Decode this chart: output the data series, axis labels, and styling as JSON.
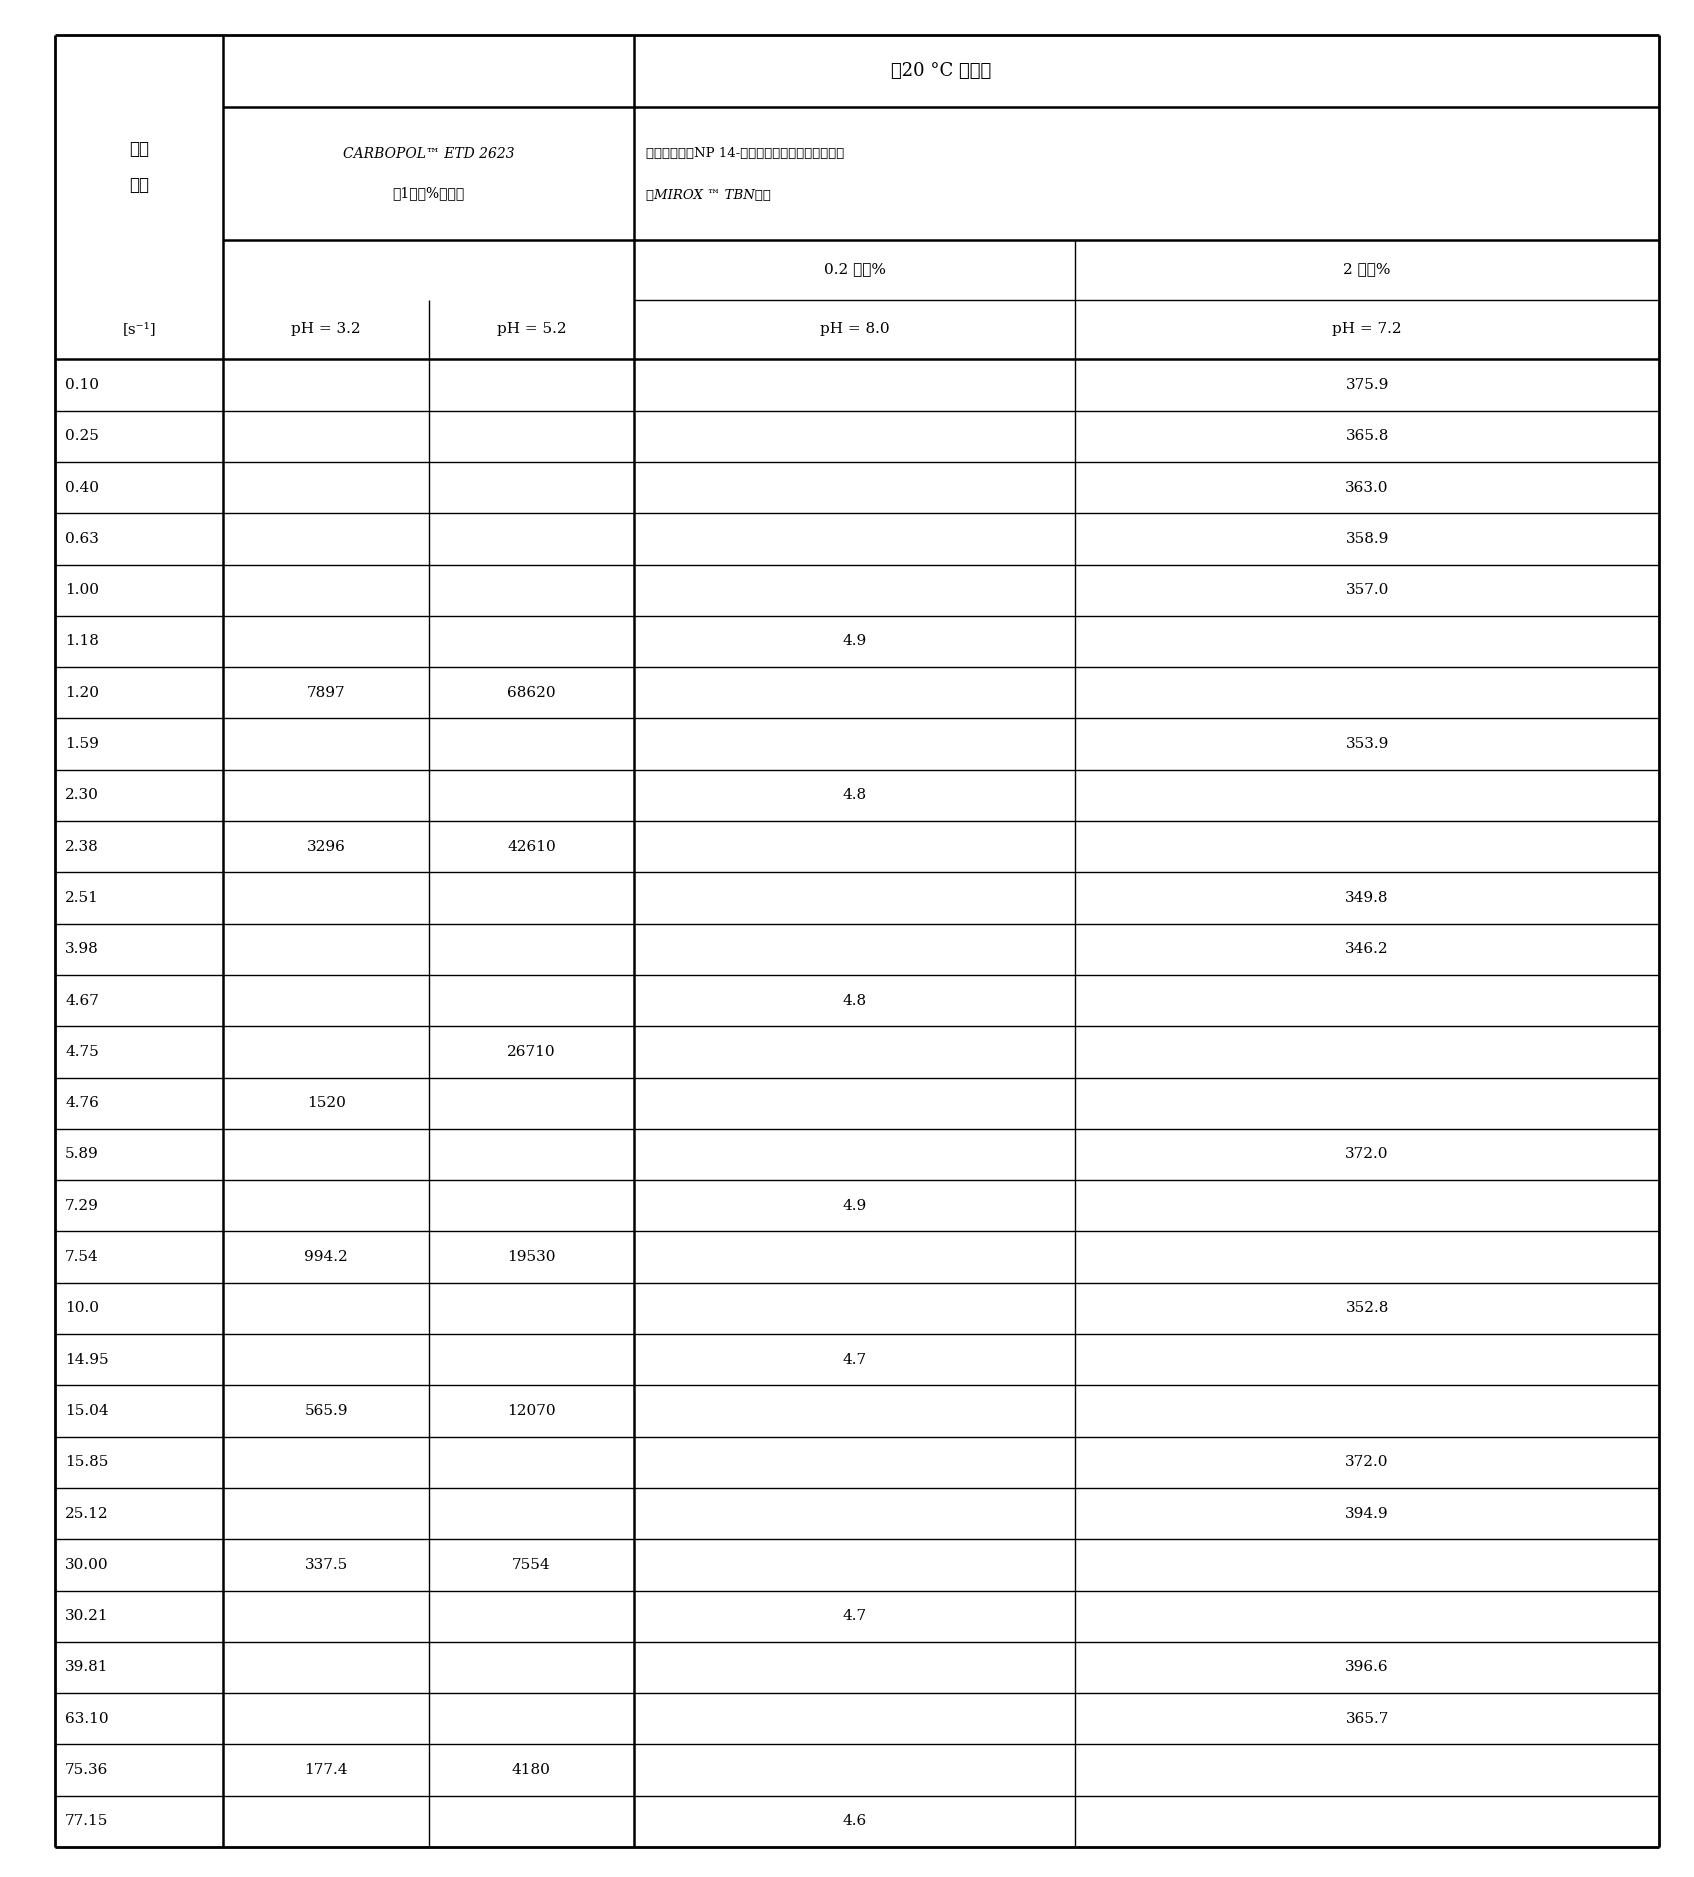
{
  "title": "在20 °C 的粘度",
  "shear_line1": "剪切",
  "shear_line2": "速率",
  "shear_unit": "[s⁻¹]",
  "carbopol_line1": "CARBOPOL™ ETD 2623",
  "carbopol_line2": "的1重量%水溶液",
  "polymer_line1": "聚丙烯酸钓和NP 14-甲基丙烯酸酯共聚物的水溶液",
  "polymer_line2": "用MIROX ™ TBN表示",
  "wt_02": "0.2 重量%",
  "wt_2": "2 重量%",
  "ph32": "pH = 3.2",
  "ph52": "pH = 5.2",
  "ph80": "pH = 8.0",
  "ph72": "pH = 7.2",
  "rows": [
    {
      "shear": "0.10",
      "c32": "",
      "c52": "",
      "c80": "",
      "c72": "375.9"
    },
    {
      "shear": "0.25",
      "c32": "",
      "c52": "",
      "c80": "",
      "c72": "365.8"
    },
    {
      "shear": "0.40",
      "c32": "",
      "c52": "",
      "c80": "",
      "c72": "363.0"
    },
    {
      "shear": "0.63",
      "c32": "",
      "c52": "",
      "c80": "",
      "c72": "358.9"
    },
    {
      "shear": "1.00",
      "c32": "",
      "c52": "",
      "c80": "",
      "c72": "357.0"
    },
    {
      "shear": "1.18",
      "c32": "",
      "c52": "",
      "c80": "4.9",
      "c72": ""
    },
    {
      "shear": "1.20",
      "c32": "7897",
      "c52": "68620",
      "c80": "",
      "c72": ""
    },
    {
      "shear": "1.59",
      "c32": "",
      "c52": "",
      "c80": "",
      "c72": "353.9"
    },
    {
      "shear": "2.30",
      "c32": "",
      "c52": "",
      "c80": "4.8",
      "c72": ""
    },
    {
      "shear": "2.38",
      "c32": "3296",
      "c52": "42610",
      "c80": "",
      "c72": ""
    },
    {
      "shear": "2.51",
      "c32": "",
      "c52": "",
      "c80": "",
      "c72": "349.8"
    },
    {
      "shear": "3.98",
      "c32": "",
      "c52": "",
      "c80": "",
      "c72": "346.2"
    },
    {
      "shear": "4.67",
      "c32": "",
      "c52": "",
      "c80": "4.8",
      "c72": ""
    },
    {
      "shear": "4.75",
      "c32": "",
      "c52": "26710",
      "c80": "",
      "c72": ""
    },
    {
      "shear": "4.76",
      "c32": "1520",
      "c52": "",
      "c80": "",
      "c72": ""
    },
    {
      "shear": "5.89",
      "c32": "",
      "c52": "",
      "c80": "",
      "c72": "372.0"
    },
    {
      "shear": "7.29",
      "c32": "",
      "c52": "",
      "c80": "4.9",
      "c72": ""
    },
    {
      "shear": "7.54",
      "c32": "994.2",
      "c52": "19530",
      "c80": "",
      "c72": ""
    },
    {
      "shear": "10.0",
      "c32": "",
      "c52": "",
      "c80": "",
      "c72": "352.8"
    },
    {
      "shear": "14.95",
      "c32": "",
      "c52": "",
      "c80": "4.7",
      "c72": ""
    },
    {
      "shear": "15.04",
      "c32": "565.9",
      "c52": "12070",
      "c80": "",
      "c72": ""
    },
    {
      "shear": "15.85",
      "c32": "",
      "c52": "",
      "c80": "",
      "c72": "372.0"
    },
    {
      "shear": "25.12",
      "c32": "",
      "c52": "",
      "c80": "",
      "c72": "394.9"
    },
    {
      "shear": "30.00",
      "c32": "337.5",
      "c52": "7554",
      "c80": "",
      "c72": ""
    },
    {
      "shear": "30.21",
      "c32": "",
      "c52": "",
      "c80": "4.7",
      "c72": ""
    },
    {
      "shear": "39.81",
      "c32": "",
      "c52": "",
      "c80": "",
      "c72": "396.6"
    },
    {
      "shear": "63.10",
      "c32": "",
      "c52": "",
      "c80": "",
      "c72": "365.7"
    },
    {
      "shear": "75.36",
      "c32": "177.4",
      "c52": "4180",
      "c80": "",
      "c72": ""
    },
    {
      "shear": "77.15",
      "c32": "",
      "c52": "",
      "c80": "4.6",
      "c72": ""
    }
  ],
  "bg": "#ffffff",
  "tc": "#000000",
  "lc": "#000000",
  "outer_lw": 2.0,
  "inner_lw": 1.0,
  "heavy_lw": 1.8,
  "fontsize_title": 13,
  "fontsize_header": 11,
  "fontsize_cell": 11,
  "fontsize_unit": 11
}
